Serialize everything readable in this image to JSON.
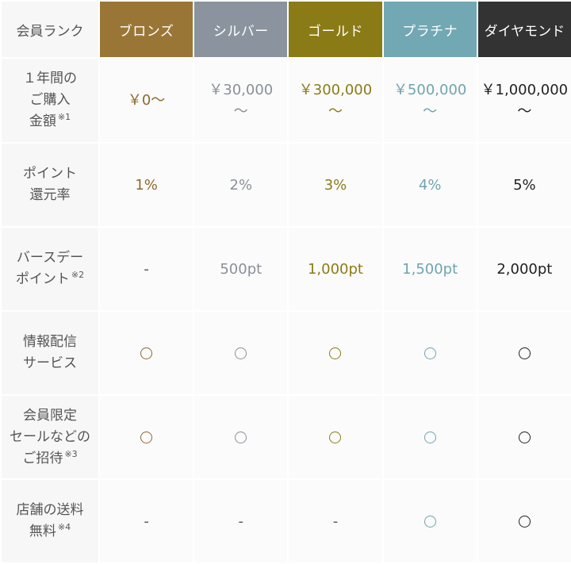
{
  "header": {
    "label": "会員ランク",
    "ranks": [
      {
        "name": "ブロンズ",
        "color": "#9a7636"
      },
      {
        "name": "シルバー",
        "color": "#8b949e"
      },
      {
        "name": "ゴールド",
        "color": "#8b7b17"
      },
      {
        "name": "プラチナ",
        "color": "#72a7b4"
      },
      {
        "name": "ダイヤモンド",
        "color": "#333333"
      }
    ]
  },
  "rows": {
    "annual_purchase": {
      "label_lines": [
        "１年間の",
        "ご購入",
        "金額"
      ],
      "note": "※1",
      "values": [
        {
          "line1": "￥0～",
          "line2": ""
        },
        {
          "line1": "￥30,000",
          "line2": "～"
        },
        {
          "line1": "￥300,000",
          "line2": "～"
        },
        {
          "line1": "￥500,000",
          "line2": "～"
        },
        {
          "line1": "￥1,000,000",
          "line2": "～"
        }
      ]
    },
    "point_rate": {
      "label_lines": [
        "ポイント",
        "還元率"
      ],
      "values": [
        "1%",
        "2%",
        "3%",
        "4%",
        "5%"
      ]
    },
    "birthday_points": {
      "label_lines": [
        "バースデー",
        "ポイント"
      ],
      "note": "※2",
      "values": [
        "-",
        "500pt",
        "1,000pt",
        "1,500pt",
        "2,000pt"
      ]
    },
    "info_service": {
      "label_lines": [
        "情報配信",
        "サービス"
      ],
      "values": [
        "available",
        "available",
        "available",
        "available",
        "available"
      ]
    },
    "member_sale": {
      "label_lines": [
        "会員限定",
        "セールなどの",
        "ご招待"
      ],
      "note": "※3",
      "values": [
        "available",
        "available",
        "available",
        "available",
        "available"
      ]
    },
    "free_shipping": {
      "label_lines": [
        "店舗の送料",
        "無料"
      ],
      "note": "※4",
      "values": [
        "-",
        "-",
        "-",
        "available",
        "available"
      ]
    }
  }
}
